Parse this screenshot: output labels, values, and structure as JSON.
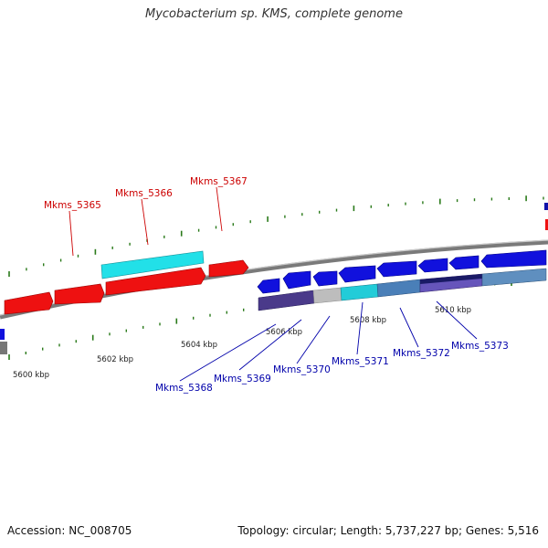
{
  "title": "Mycobacterium sp. KMS, complete genome",
  "footer": {
    "accession": "Accession: NC_008705",
    "stats": "Topology: circular; Length: 5,737,227 bp; Genes: 5,516"
  },
  "colors": {
    "forward_gene": "#ee1111",
    "reverse_gene": "#1111dd",
    "backbone": "#7a7a7a",
    "tick": "#2a7a1a",
    "forward_label": "#cc0000",
    "reverse_label": "#0000aa",
    "highlight_cyan": "#22e0e8",
    "reverse_track": "#4a3a8a"
  },
  "kbp_labels": [
    "5600 kbp",
    "5602 kbp",
    "5604 kbp",
    "5606 kbp",
    "5608 kbp",
    "5610 kbp"
  ],
  "forward_genes": [
    "Mkms_5365",
    "Mkms_5366",
    "Mkms_5367"
  ],
  "reverse_genes": [
    "Mkms_5368",
    "Mkms_5369",
    "Mkms_5370",
    "Mkms_5371",
    "Mkms_5372",
    "Mkms_5373"
  ]
}
